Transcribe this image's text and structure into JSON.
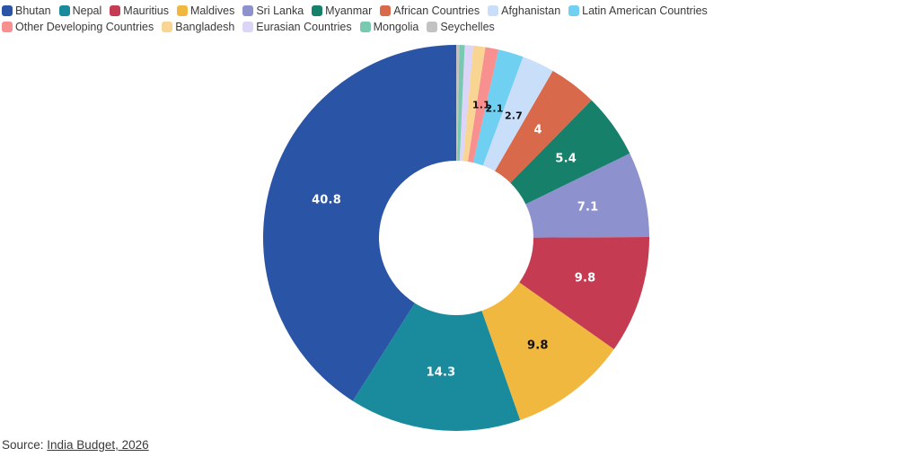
{
  "source": {
    "prefix": "Source: ",
    "link_text": "India Budget, 2026"
  },
  "legend": {
    "rows": [
      [
        "Bhutan",
        "Nepal",
        "Mauritius",
        "Maldives",
        "Sri Lanka",
        "Myanmar",
        "African Countries",
        "Afghanistan",
        "Latin American Countries"
      ],
      [
        "Other Developing Countries",
        "Bangladesh",
        "Eurasian Countries",
        "Mongolia",
        "Seychelles"
      ]
    ]
  },
  "chart_data": {
    "type": "pie",
    "subtype": "donut",
    "hole_ratio": 0.4,
    "direction": "counterclockwise",
    "start_angle_deg": 0,
    "legend_position": "top-left",
    "unit": "percent",
    "title": "",
    "slices": [
      {
        "label": "Bhutan",
        "value": 40.8,
        "text": "40.8",
        "color": "#2a54a5",
        "text_color": "#ffffff"
      },
      {
        "label": "Nepal",
        "value": 14.3,
        "text": "14.3",
        "color": "#1a8a9d",
        "text_color": "#ffffff"
      },
      {
        "label": "Maldives",
        "value": 9.8,
        "text": "9.8",
        "color": "#f0b83e",
        "text_color": "#111111"
      },
      {
        "label": "Mauritius",
        "value": 9.8,
        "text": "9.8",
        "color": "#c53b52",
        "text_color": "#ffffff"
      },
      {
        "label": "Sri Lanka",
        "value": 7.1,
        "text": "7.1",
        "color": "#8d92cf",
        "text_color": "#ffffff"
      },
      {
        "label": "Myanmar",
        "value": 5.4,
        "text": "5.4",
        "color": "#16806a",
        "text_color": "#ffffff"
      },
      {
        "label": "African Countries",
        "value": 4,
        "text": "4",
        "color": "#d8694b",
        "text_color": "#ffffff"
      },
      {
        "label": "Afghanistan",
        "value": 2.7,
        "text": "2.7",
        "color": "#c9def8",
        "text_color": "#111111"
      },
      {
        "label": "Latin American Countries",
        "value": 2.1,
        "text": "2.1",
        "color": "#6fd0f1",
        "text_color": "#111111"
      },
      {
        "label": "Other Developing Countries",
        "value": 1.1,
        "text": "1.1",
        "color": "#f7908e",
        "text_color": "#111111"
      },
      {
        "label": "Bangladesh",
        "value": 1.0,
        "text": "",
        "color": "#f8d592",
        "text_color": "#111111"
      },
      {
        "label": "Eurasian Countries",
        "value": 0.7,
        "text": "",
        "color": "#dcd5f7",
        "text_color": "#111111"
      },
      {
        "label": "Mongolia",
        "value": 0.45,
        "text": "",
        "color": "#79c8b1",
        "text_color": "#111111"
      },
      {
        "label": "Seychelles",
        "value": 0.25,
        "text": "",
        "color": "#c2c2c2",
        "text_color": "#111111"
      }
    ]
  }
}
